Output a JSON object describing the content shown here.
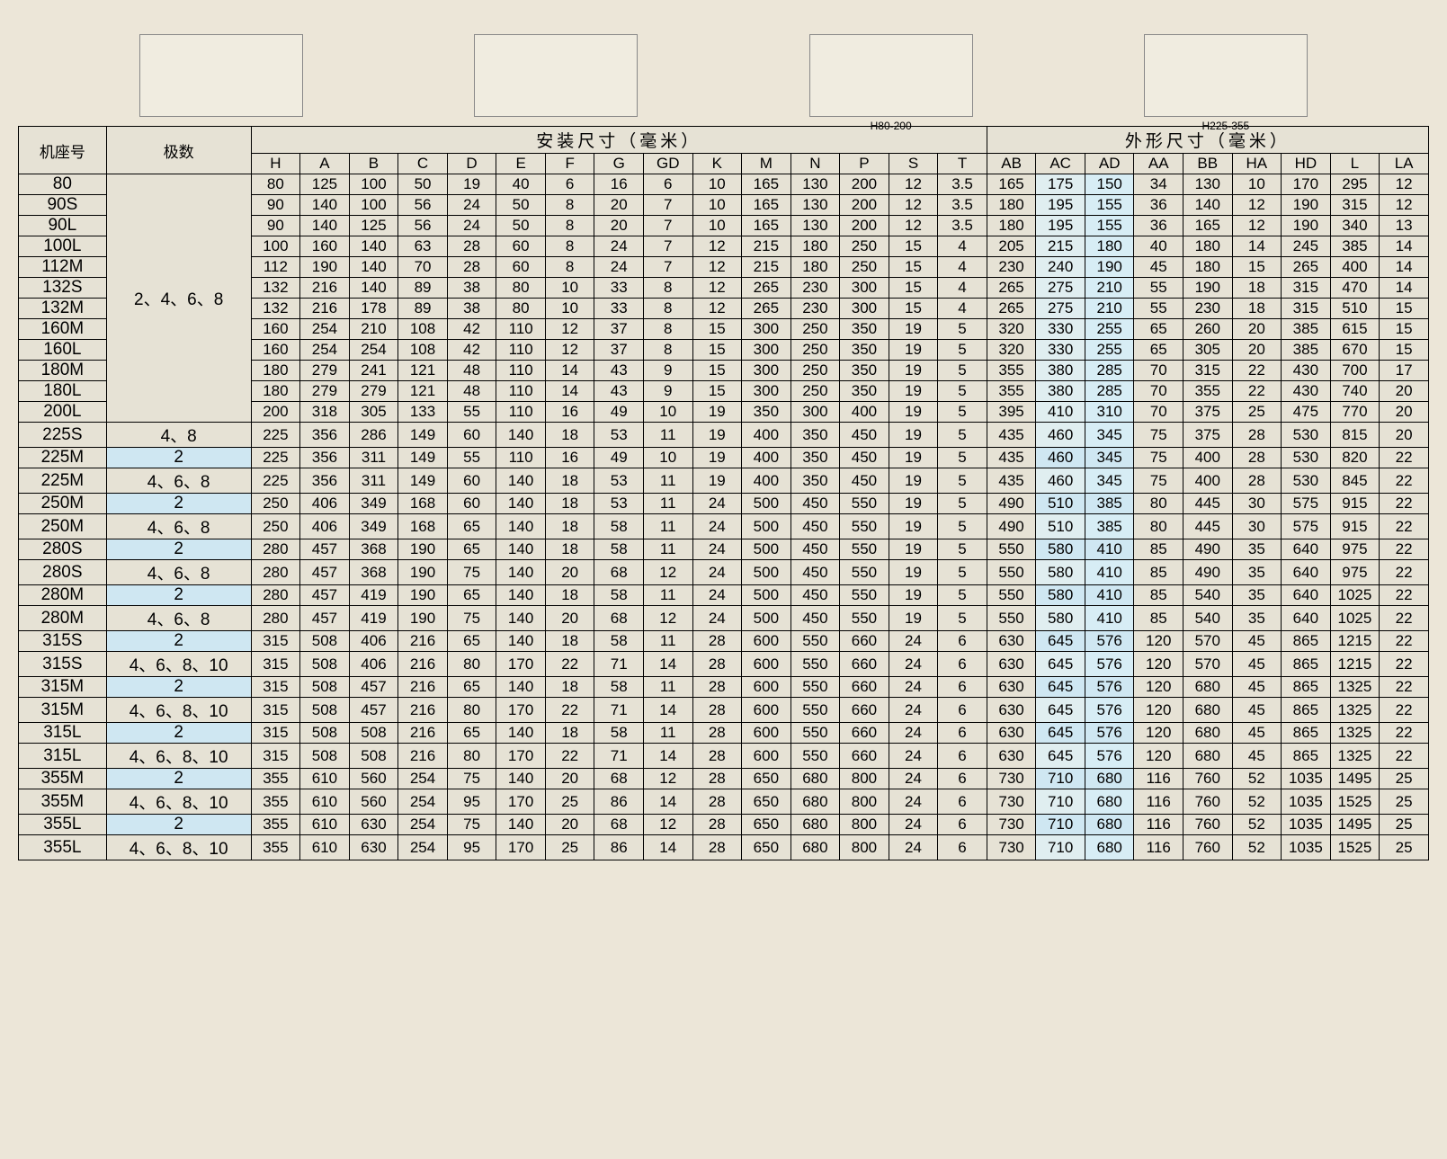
{
  "diagrams": [
    {
      "label": ""
    },
    {
      "label": ""
    },
    {
      "label": "H80-200"
    },
    {
      "label": "H225-355"
    }
  ],
  "sections": {
    "install": "安装尺寸（毫米）",
    "outline": "外形尺寸（毫米）"
  },
  "headers": {
    "frame": "机座号",
    "poles": "极数",
    "install": [
      "H",
      "A",
      "B",
      "C",
      "D",
      "E",
      "F",
      "G",
      "GD",
      "K",
      "M",
      "N",
      "P",
      "S",
      "T"
    ],
    "outline": [
      "AB",
      "AC",
      "AD",
      "AA",
      "BB",
      "HA",
      "HD",
      "L",
      "LA"
    ]
  },
  "pole_groups": [
    {
      "label": "2、4、6、8",
      "span": 12
    }
  ],
  "rows": [
    {
      "frame": "80",
      "poles": null,
      "v": [
        80,
        125,
        100,
        50,
        19,
        40,
        6,
        16,
        6,
        10,
        165,
        130,
        200,
        12,
        3.5,
        165,
        175,
        150,
        34,
        130,
        10,
        170,
        295,
        12
      ],
      "hl": false
    },
    {
      "frame": "90S",
      "poles": null,
      "v": [
        90,
        140,
        100,
        56,
        24,
        50,
        8,
        20,
        7,
        10,
        165,
        130,
        200,
        12,
        3.5,
        180,
        195,
        155,
        36,
        140,
        12,
        190,
        315,
        12
      ],
      "hl": false
    },
    {
      "frame": "90L",
      "poles": null,
      "v": [
        90,
        140,
        125,
        56,
        24,
        50,
        8,
        20,
        7,
        10,
        165,
        130,
        200,
        12,
        3.5,
        180,
        195,
        155,
        36,
        165,
        12,
        190,
        340,
        13
      ],
      "hl": false
    },
    {
      "frame": "100L",
      "poles": null,
      "v": [
        100,
        160,
        140,
        63,
        28,
        60,
        8,
        24,
        7,
        12,
        215,
        180,
        250,
        15,
        4,
        205,
        215,
        180,
        40,
        180,
        14,
        245,
        385,
        14
      ],
      "hl": false
    },
    {
      "frame": "112M",
      "poles": null,
      "v": [
        112,
        190,
        140,
        70,
        28,
        60,
        8,
        24,
        7,
        12,
        215,
        180,
        250,
        15,
        4,
        230,
        240,
        190,
        45,
        180,
        15,
        265,
        400,
        14
      ],
      "hl": false
    },
    {
      "frame": "132S",
      "poles": null,
      "v": [
        132,
        216,
        140,
        89,
        38,
        80,
        10,
        33,
        8,
        12,
        265,
        230,
        300,
        15,
        4,
        265,
        275,
        210,
        55,
        190,
        18,
        315,
        470,
        14
      ],
      "hl": false
    },
    {
      "frame": "132M",
      "poles": null,
      "v": [
        132,
        216,
        178,
        89,
        38,
        80,
        10,
        33,
        8,
        12,
        265,
        230,
        300,
        15,
        4,
        265,
        275,
        210,
        55,
        230,
        18,
        315,
        510,
        15
      ],
      "hl": false
    },
    {
      "frame": "160M",
      "poles": null,
      "v": [
        160,
        254,
        210,
        108,
        42,
        110,
        12,
        37,
        8,
        15,
        300,
        250,
        350,
        19,
        5,
        320,
        330,
        255,
        65,
        260,
        20,
        385,
        615,
        15
      ],
      "hl": false
    },
    {
      "frame": "160L",
      "poles": null,
      "v": [
        160,
        254,
        254,
        108,
        42,
        110,
        12,
        37,
        8,
        15,
        300,
        250,
        350,
        19,
        5,
        320,
        330,
        255,
        65,
        305,
        20,
        385,
        670,
        15
      ],
      "hl": false
    },
    {
      "frame": "180M",
      "poles": null,
      "v": [
        180,
        279,
        241,
        121,
        48,
        110,
        14,
        43,
        9,
        15,
        300,
        250,
        350,
        19,
        5,
        355,
        380,
        285,
        70,
        315,
        22,
        430,
        700,
        17
      ],
      "hl": false
    },
    {
      "frame": "180L",
      "poles": null,
      "v": [
        180,
        279,
        279,
        121,
        48,
        110,
        14,
        43,
        9,
        15,
        300,
        250,
        350,
        19,
        5,
        355,
        380,
        285,
        70,
        355,
        22,
        430,
        740,
        20
      ],
      "hl": false
    },
    {
      "frame": "200L",
      "poles": null,
      "v": [
        200,
        318,
        305,
        133,
        55,
        110,
        16,
        49,
        10,
        19,
        350,
        300,
        400,
        19,
        5,
        395,
        410,
        310,
        70,
        375,
        25,
        475,
        770,
        20
      ],
      "hl": false
    },
    {
      "frame": "225S",
      "poles": "4、8",
      "v": [
        225,
        356,
        286,
        149,
        60,
        140,
        18,
        53,
        11,
        19,
        400,
        350,
        450,
        19,
        5,
        435,
        460,
        345,
        75,
        375,
        28,
        530,
        815,
        20
      ],
      "hl": false
    },
    {
      "frame": "225M",
      "poles": "2",
      "v": [
        225,
        356,
        311,
        149,
        55,
        110,
        16,
        49,
        10,
        19,
        400,
        350,
        450,
        19,
        5,
        435,
        460,
        345,
        75,
        400,
        28,
        530,
        820,
        22
      ],
      "hl": true
    },
    {
      "frame": "225M",
      "poles": "4、6、8",
      "v": [
        225,
        356,
        311,
        149,
        60,
        140,
        18,
        53,
        11,
        19,
        400,
        350,
        450,
        19,
        5,
        435,
        460,
        345,
        75,
        400,
        28,
        530,
        845,
        22
      ],
      "hl": false
    },
    {
      "frame": "250M",
      "poles": "2",
      "v": [
        250,
        406,
        349,
        168,
        60,
        140,
        18,
        53,
        11,
        24,
        500,
        450,
        550,
        19,
        5,
        490,
        510,
        385,
        80,
        445,
        30,
        575,
        915,
        22
      ],
      "hl": true
    },
    {
      "frame": "250M",
      "poles": "4、6、8",
      "v": [
        250,
        406,
        349,
        168,
        65,
        140,
        18,
        58,
        11,
        24,
        500,
        450,
        550,
        19,
        5,
        490,
        510,
        385,
        80,
        445,
        30,
        575,
        915,
        22
      ],
      "hl": false
    },
    {
      "frame": "280S",
      "poles": "2",
      "v": [
        280,
        457,
        368,
        190,
        65,
        140,
        18,
        58,
        11,
        24,
        500,
        450,
        550,
        19,
        5,
        550,
        580,
        410,
        85,
        490,
        35,
        640,
        975,
        22
      ],
      "hl": true
    },
    {
      "frame": "280S",
      "poles": "4、6、8",
      "v": [
        280,
        457,
        368,
        190,
        75,
        140,
        20,
        68,
        12,
        24,
        500,
        450,
        550,
        19,
        5,
        550,
        580,
        410,
        85,
        490,
        35,
        640,
        975,
        22
      ],
      "hl": false
    },
    {
      "frame": "280M",
      "poles": "2",
      "v": [
        280,
        457,
        419,
        190,
        65,
        140,
        18,
        58,
        11,
        24,
        500,
        450,
        550,
        19,
        5,
        550,
        580,
        410,
        85,
        540,
        35,
        640,
        1025,
        22
      ],
      "hl": true
    },
    {
      "frame": "280M",
      "poles": "4、6、8",
      "v": [
        280,
        457,
        419,
        190,
        75,
        140,
        20,
        68,
        12,
        24,
        500,
        450,
        550,
        19,
        5,
        550,
        580,
        410,
        85,
        540,
        35,
        640,
        1025,
        22
      ],
      "hl": false
    },
    {
      "frame": "315S",
      "poles": "2",
      "v": [
        315,
        508,
        406,
        216,
        65,
        140,
        18,
        58,
        11,
        28,
        600,
        550,
        660,
        24,
        6,
        630,
        645,
        576,
        120,
        570,
        45,
        865,
        1215,
        22
      ],
      "hl": true
    },
    {
      "frame": "315S",
      "poles": "4、6、8、10",
      "v": [
        315,
        508,
        406,
        216,
        80,
        170,
        22,
        71,
        14,
        28,
        600,
        550,
        660,
        24,
        6,
        630,
        645,
        576,
        120,
        570,
        45,
        865,
        1215,
        22
      ],
      "hl": false
    },
    {
      "frame": "315M",
      "poles": "2",
      "v": [
        315,
        508,
        457,
        216,
        65,
        140,
        18,
        58,
        11,
        28,
        600,
        550,
        660,
        24,
        6,
        630,
        645,
        576,
        120,
        680,
        45,
        865,
        1325,
        22
      ],
      "hl": true
    },
    {
      "frame": "315M",
      "poles": "4、6、8、10",
      "v": [
        315,
        508,
        457,
        216,
        80,
        170,
        22,
        71,
        14,
        28,
        600,
        550,
        660,
        24,
        6,
        630,
        645,
        576,
        120,
        680,
        45,
        865,
        1325,
        22
      ],
      "hl": false
    },
    {
      "frame": "315L",
      "poles": "2",
      "v": [
        315,
        508,
        508,
        216,
        65,
        140,
        18,
        58,
        11,
        28,
        600,
        550,
        660,
        24,
        6,
        630,
        645,
        576,
        120,
        680,
        45,
        865,
        1325,
        22
      ],
      "hl": true
    },
    {
      "frame": "315L",
      "poles": "4、6、8、10",
      "v": [
        315,
        508,
        508,
        216,
        80,
        170,
        22,
        71,
        14,
        28,
        600,
        550,
        660,
        24,
        6,
        630,
        645,
        576,
        120,
        680,
        45,
        865,
        1325,
        22
      ],
      "hl": false
    },
    {
      "frame": "355M",
      "poles": "2",
      "v": [
        355,
        610,
        560,
        254,
        75,
        140,
        20,
        68,
        12,
        28,
        650,
        680,
        800,
        24,
        6,
        730,
        710,
        680,
        116,
        760,
        52,
        1035,
        1495,
        25
      ],
      "hl": true
    },
    {
      "frame": "355M",
      "poles": "4、6、8、10",
      "v": [
        355,
        610,
        560,
        254,
        95,
        170,
        25,
        86,
        14,
        28,
        650,
        680,
        800,
        24,
        6,
        730,
        710,
        680,
        116,
        760,
        52,
        1035,
        1525,
        25
      ],
      "hl": false
    },
    {
      "frame": "355L",
      "poles": "2",
      "v": [
        355,
        610,
        630,
        254,
        75,
        140,
        20,
        68,
        12,
        28,
        650,
        680,
        800,
        24,
        6,
        730,
        710,
        680,
        116,
        760,
        52,
        1035,
        1495,
        25
      ],
      "hl": true
    },
    {
      "frame": "355L",
      "poles": "4、6、8、10",
      "v": [
        355,
        610,
        630,
        254,
        95,
        170,
        25,
        86,
        14,
        28,
        650,
        680,
        800,
        24,
        6,
        730,
        710,
        680,
        116,
        760,
        52,
        1035,
        1525,
        25
      ],
      "hl": false
    }
  ],
  "colors": {
    "background": "#ece6d8",
    "table_bg": "#e6e2d5",
    "border": "#000000",
    "highlight": "#cfe7f2",
    "soft_highlight_ad": "#d7edf5",
    "soft_highlight_ac": "#e0eef0"
  }
}
